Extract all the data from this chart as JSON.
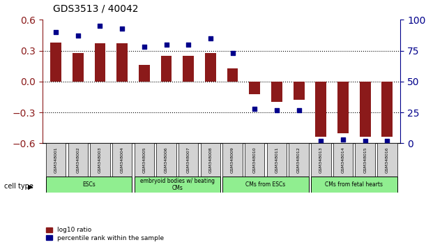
{
  "title": "GDS3513 / 40042",
  "samples": [
    "GSM348001",
    "GSM348002",
    "GSM348003",
    "GSM348004",
    "GSM348005",
    "GSM348006",
    "GSM348007",
    "GSM348008",
    "GSM348009",
    "GSM348010",
    "GSM348011",
    "GSM348012",
    "GSM348013",
    "GSM348014",
    "GSM348015",
    "GSM348016"
  ],
  "log10_ratio": [
    0.38,
    0.28,
    0.37,
    0.37,
    0.16,
    0.25,
    0.25,
    0.28,
    0.13,
    -0.12,
    -0.2,
    -0.18,
    -0.54,
    -0.5,
    -0.54,
    -0.54
  ],
  "percentile_rank": [
    90,
    87,
    95,
    93,
    78,
    80,
    80,
    85,
    73,
    28,
    27,
    27,
    2,
    3,
    2,
    2
  ],
  "bar_color": "#8B1A1A",
  "dot_color": "#00008B",
  "ylim_left": [
    -0.6,
    0.6
  ],
  "ylim_right": [
    0,
    100
  ],
  "yticks_left": [
    -0.6,
    -0.3,
    0.0,
    0.3,
    0.6
  ],
  "yticks_right": [
    0,
    25,
    50,
    75,
    100
  ],
  "ytick_labels_right": [
    "0",
    "25",
    "50",
    "75",
    "100%"
  ],
  "hlines": [
    -0.3,
    0.0,
    0.3
  ],
  "hline_styles": [
    "dotted",
    "dotted",
    "dotted"
  ],
  "cell_types": [
    {
      "label": "ESCs",
      "start": 0,
      "end": 3,
      "color": "#90EE90"
    },
    {
      "label": "embryoid bodies w/ beating\nCMs",
      "start": 4,
      "end": 7,
      "color": "#90EE90"
    },
    {
      "label": "CMs from ESCs",
      "start": 8,
      "end": 11,
      "color": "#90EE90"
    },
    {
      "label": "CMs from fetal hearts",
      "start": 12,
      "end": 15,
      "color": "#90EE90"
    }
  ],
  "cell_type_label": "cell type",
  "legend_items": [
    {
      "label": "log10 ratio",
      "color": "#8B1A1A"
    },
    {
      "label": "percentile rank within the sample",
      "color": "#00008B"
    }
  ],
  "bar_width": 0.5,
  "plot_bg": "#FFFFFF",
  "tick_bg": "#D3D3D3"
}
